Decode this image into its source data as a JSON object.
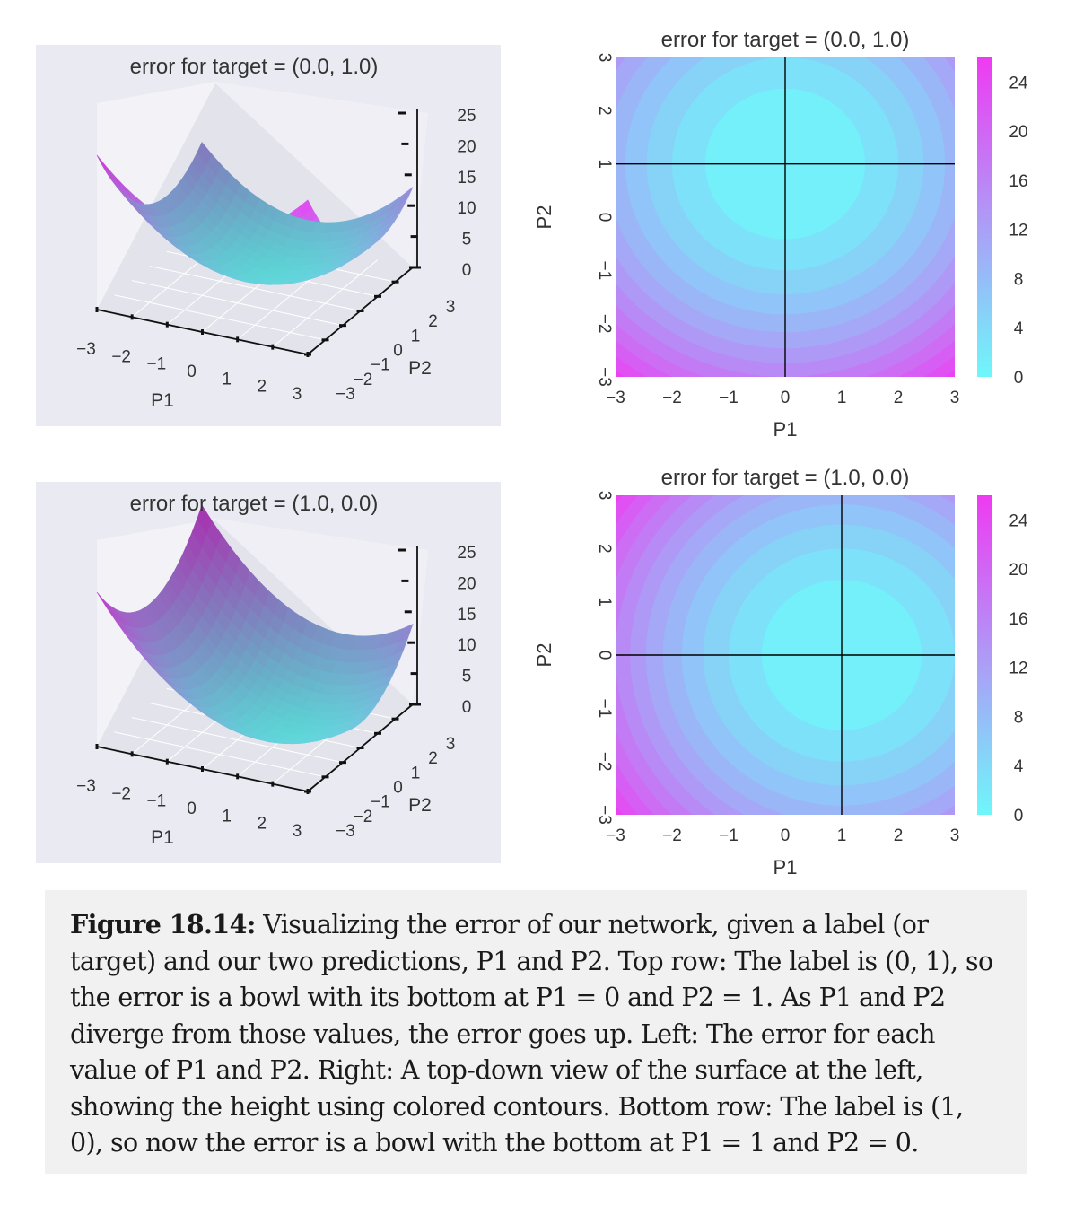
{
  "chart_data": [
    {
      "type": "surface",
      "title": "error for target = (0.0, 1.0)",
      "target": [
        0.0,
        1.0
      ],
      "xlabel": "P1",
      "ylabel": "P2",
      "x_ticks": [
        "−3",
        "−2",
        "−1",
        "0",
        "1",
        "2",
        "3"
      ],
      "y_ticks": [
        "−3",
        "−2",
        "−1",
        "0",
        "1",
        "2",
        "3"
      ],
      "z_ticks": [
        "0",
        "5",
        "10",
        "15",
        "20",
        "25"
      ],
      "xlim": [
        -3,
        3
      ],
      "ylim": [
        -3,
        3
      ],
      "zlim": [
        0,
        25
      ]
    },
    {
      "type": "contour",
      "title": "error for target = (0.0, 1.0)",
      "target": [
        0.0,
        1.0
      ],
      "xlabel": "P1",
      "ylabel": "P2",
      "x_ticks": [
        "−3",
        "−2",
        "−1",
        "0",
        "1",
        "2",
        "3"
      ],
      "y_ticks": [
        "3",
        "2",
        "1",
        "0",
        "−1",
        "−2",
        "−3"
      ],
      "colorbar_ticks": [
        "24",
        "20",
        "16",
        "12",
        "8",
        "4",
        "0"
      ],
      "xlim": [
        -3,
        3
      ],
      "ylim": [
        -3,
        3
      ],
      "clim": [
        0,
        26
      ]
    },
    {
      "type": "surface",
      "title": "error for target = (1.0, 0.0)",
      "target": [
        1.0,
        0.0
      ],
      "xlabel": "P1",
      "ylabel": "P2",
      "x_ticks": [
        "−3",
        "−2",
        "−1",
        "0",
        "1",
        "2",
        "3"
      ],
      "y_ticks": [
        "−3",
        "−2",
        "−1",
        "0",
        "1",
        "2",
        "3"
      ],
      "z_ticks": [
        "0",
        "5",
        "10",
        "15",
        "20",
        "25"
      ],
      "xlim": [
        -3,
        3
      ],
      "ylim": [
        -3,
        3
      ],
      "zlim": [
        0,
        25
      ]
    },
    {
      "type": "contour",
      "title": "error for target = (1.0, 0.0)",
      "target": [
        1.0,
        0.0
      ],
      "xlabel": "P1",
      "ylabel": "P2",
      "x_ticks": [
        "−3",
        "−2",
        "−1",
        "0",
        "1",
        "2",
        "3"
      ],
      "y_ticks": [
        "3",
        "2",
        "1",
        "0",
        "−1",
        "−2",
        "−3"
      ],
      "colorbar_ticks": [
        "24",
        "20",
        "16",
        "12",
        "8",
        "4",
        "0"
      ],
      "xlim": [
        -3,
        3
      ],
      "ylim": [
        -3,
        3
      ],
      "clim": [
        0,
        26
      ]
    }
  ],
  "colors": {
    "low": "#6ef7fa",
    "high": "#ef3af2",
    "panel_bg": "#eaeaf2"
  },
  "caption": {
    "label": "Figure 18.14:",
    "text": " Visualizing the error of our network, given a label (or target) and our two predictions, P1 and P2. Top row: The label is (0, 1), so the error is a bowl with its bottom at P1 = 0 and P2 = 1. As P1 and P2 diverge from those values, the error goes up. Left: The error for each value of P1 and P2. Right: A top-down view of the surface at the left, showing the height using colored contours. Bottom row: The label is (1, 0), so now the error is a bowl with the bottom at P1 = 1 and P2 = 0."
  }
}
